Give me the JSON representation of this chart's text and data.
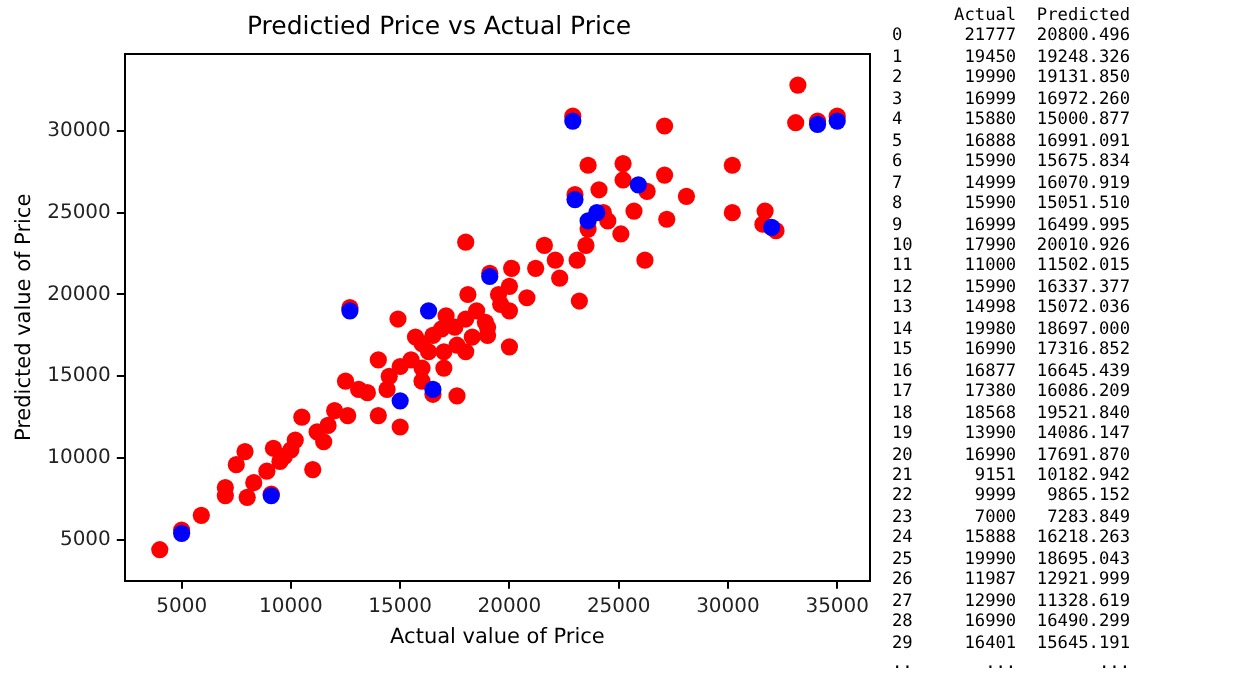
{
  "chart_data": [
    {
      "type": "scatter",
      "title": "Predictied Price vs Actual Price",
      "xlabel": "Actual value of Price",
      "ylabel": "Predicted value of Price",
      "xlim": [
        2400,
        36500
      ],
      "ylim": [
        2500,
        34700
      ],
      "xticks": [
        5000,
        10000,
        15000,
        20000,
        25000,
        30000,
        35000
      ],
      "yticks": [
        5000,
        10000,
        15000,
        20000,
        25000,
        30000
      ],
      "grid": false,
      "legend": false,
      "marker": "circle",
      "series": [
        {
          "color": "#0000ff",
          "x": [
            22900,
            23000,
            35000,
            32000,
            15000,
            16500,
            19100,
            25900,
            34100,
            9100,
            5000,
            16300,
            24000,
            23600,
            12700
          ],
          "values": [
            30600,
            25800,
            30600,
            24100,
            13500,
            14200,
            21100,
            26700,
            30400,
            7700,
            5400,
            19000,
            25000,
            24500,
            19000
          ]
        },
        {
          "color": "#ff0000",
          "x": [
            4000,
            5000,
            5900,
            7000,
            7000,
            7500,
            7900,
            8000,
            8300,
            8900,
            9100,
            9200,
            9700,
            10200,
            10500,
            11000,
            11200,
            11700,
            12000,
            12600,
            12500,
            12700,
            13100,
            14000,
            14000,
            14400,
            14900,
            15000,
            15000,
            15700,
            16000,
            16500,
            16300,
            16900,
            17100,
            17600,
            17600,
            18000,
            18100,
            18300,
            18900,
            19100,
            19600,
            20000,
            20100,
            20800,
            21200,
            21600,
            22100,
            22300,
            22900,
            23000,
            23100,
            23200,
            23600,
            23600,
            24100,
            24300,
            25100,
            25200,
            25200,
            25700,
            26200,
            26300,
            27100,
            27100,
            27200,
            28100,
            30200,
            30200,
            31700,
            31600,
            32200,
            33200,
            33100,
            34100,
            35000,
            15500,
            16000,
            16500,
            17000,
            17500,
            18000,
            18500,
            19000,
            19500,
            20000,
            20000,
            17000,
            14500,
            13500,
            11500,
            10000,
            9500,
            19000,
            18000,
            16000,
            24500,
            23500
          ],
          "values": [
            4400,
            5600,
            6500,
            7700,
            8200,
            9600,
            10400,
            7600,
            8500,
            9200,
            7800,
            10600,
            10100,
            11100,
            12500,
            9300,
            11600,
            12000,
            12900,
            12600,
            14700,
            19200,
            14200,
            12600,
            16000,
            14200,
            18500,
            11900,
            15600,
            17400,
            14700,
            13900,
            16500,
            17900,
            18700,
            13800,
            16900,
            23200,
            20000,
            17400,
            18300,
            21300,
            19400,
            16800,
            21600,
            19800,
            21600,
            23000,
            22100,
            21000,
            30900,
            26100,
            22100,
            19600,
            27900,
            24000,
            26400,
            25000,
            23700,
            28000,
            27000,
            25100,
            22100,
            26300,
            30300,
            27300,
            24600,
            26000,
            27900,
            25000,
            25100,
            24300,
            23900,
            32800,
            30500,
            30600,
            30900,
            16000,
            17000,
            17500,
            16500,
            18000,
            18500,
            19000,
            18000,
            20000,
            20500,
            19000,
            15500,
            15000,
            14000,
            11000,
            10500,
            9800,
            17500,
            16500,
            15500,
            24500,
            23000
          ]
        }
      ]
    },
    {
      "type": "other",
      "annotations": [
        "      Actual  Predicted",
        "0      21777  20800.496",
        "1      19450  19248.326",
        "2      19990  19131.850",
        "3      16999  16972.260",
        "4      15880  15000.877",
        "5      16888  16991.091",
        "6      15990  15675.834",
        "7      14999  16070.919",
        "8      15990  15051.510",
        "9      16999  16499.995",
        "10     17990  20010.926",
        "11     11000  11502.015",
        "12     15990  16337.377",
        "13     14998  15072.036",
        "14     19980  18697.000",
        "15     16990  17316.852",
        "16     16877  16645.439",
        "17     17380  16086.209",
        "18     18568  19521.840",
        "19     13990  14086.147",
        "20     16990  17691.870",
        "21      9151  10182.942",
        "22      9999   9865.152",
        "23      7000   7283.849",
        "24     15888  16218.263",
        "25     19990  18695.043",
        "26     11987  12921.999",
        "27     12990  11328.619",
        "28     16990  16490.299",
        "29     16401  15645.191",
        "..       ...        ..."
      ]
    }
  ]
}
